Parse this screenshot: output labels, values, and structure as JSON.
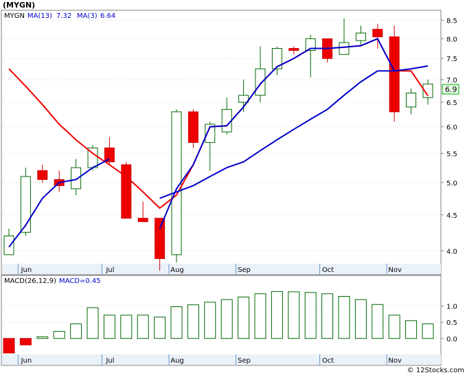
{
  "chart_data": [
    {
      "type": "candlestick",
      "title": "(MYGN)",
      "legend": [
        {
          "label": "MYGN",
          "color": "#000000"
        },
        {
          "label": "MA(13)",
          "value": "7.32",
          "color": "#0000cc"
        },
        {
          "label": "MA(3)",
          "value": "6.64",
          "color": "#cc0000"
        }
      ],
      "last_price_label": "6.9",
      "y_scale": "log",
      "ylim": [
        3.7,
        8.7
      ],
      "y_ticks": [
        "8.5",
        "8.0",
        "7.5",
        "7.0",
        "6.5",
        "6.0",
        "5.5",
        "5.0",
        "4.5",
        "4.0"
      ],
      "x_labels": [
        {
          "label": "Jun",
          "week": 1
        },
        {
          "label": "Jul",
          "week": 6
        },
        {
          "label": "Aug",
          "week": 10
        },
        {
          "label": "Sep",
          "week": 14
        },
        {
          "label": "Oct",
          "week": 19
        },
        {
          "label": "Nov",
          "week": 23
        }
      ],
      "candles": [
        {
          "o": 3.95,
          "h": 4.3,
          "l": 3.95,
          "c": 4.2
        },
        {
          "o": 4.25,
          "h": 5.25,
          "l": 4.2,
          "c": 5.1
        },
        {
          "o": 5.2,
          "h": 5.3,
          "l": 5.0,
          "c": 5.05
        },
        {
          "o": 5.05,
          "h": 5.2,
          "l": 4.85,
          "c": 4.95
        },
        {
          "o": 4.9,
          "h": 5.4,
          "l": 4.8,
          "c": 5.25
        },
        {
          "o": 5.25,
          "h": 5.65,
          "l": 5.2,
          "c": 5.6
        },
        {
          "o": 5.6,
          "h": 5.8,
          "l": 5.3,
          "c": 5.35
        },
        {
          "o": 5.3,
          "h": 5.35,
          "l": 4.45,
          "c": 4.45
        },
        {
          "o": 4.45,
          "h": 4.7,
          "l": 4.4,
          "c": 4.4
        },
        {
          "o": 4.45,
          "h": 4.45,
          "l": 3.75,
          "c": 3.9
        },
        {
          "o": 3.95,
          "h": 6.35,
          "l": 3.85,
          "c": 6.3
        },
        {
          "o": 6.3,
          "h": 6.35,
          "l": 5.6,
          "c": 5.7
        },
        {
          "o": 5.7,
          "h": 6.1,
          "l": 5.2,
          "c": 6.05
        },
        {
          "o": 5.9,
          "h": 6.6,
          "l": 5.85,
          "c": 6.35
        },
        {
          "o": 6.5,
          "h": 7.0,
          "l": 6.3,
          "c": 6.65
        },
        {
          "o": 6.65,
          "h": 7.8,
          "l": 6.5,
          "c": 7.25
        },
        {
          "o": 7.25,
          "h": 7.8,
          "l": 7.1,
          "c": 7.75
        },
        {
          "o": 7.75,
          "h": 7.8,
          "l": 7.6,
          "c": 7.7
        },
        {
          "o": 7.7,
          "h": 8.1,
          "l": 7.05,
          "c": 8.0
        },
        {
          "o": 8.0,
          "h": 8.0,
          "l": 7.4,
          "c": 7.5
        },
        {
          "o": 7.6,
          "h": 8.55,
          "l": 7.6,
          "c": 7.9
        },
        {
          "o": 7.95,
          "h": 8.35,
          "l": 7.8,
          "c": 8.15
        },
        {
          "o": 8.25,
          "h": 8.4,
          "l": 7.75,
          "c": 8.05
        },
        {
          "o": 8.05,
          "h": 8.35,
          "l": 6.1,
          "c": 6.3
        },
        {
          "o": 6.4,
          "h": 6.8,
          "l": 6.25,
          "c": 6.7
        },
        {
          "o": 6.6,
          "h": 7.0,
          "l": 6.45,
          "c": 6.9
        }
      ],
      "ma13": [
        [
          0,
          4.05
        ],
        [
          1,
          4.35
        ],
        [
          2,
          4.75
        ],
        [
          3,
          5.0
        ],
        [
          4,
          5.05
        ],
        [
          5,
          5.25
        ],
        [
          6,
          5.4
        ],
        [
          9,
          4.3
        ],
        [
          10,
          4.9
        ],
        [
          11,
          5.3
        ],
        [
          12,
          6.0
        ],
        [
          13,
          6.02
        ],
        [
          14,
          6.4
        ],
        [
          15,
          6.9
        ],
        [
          16,
          7.3
        ],
        [
          17,
          7.5
        ],
        [
          18,
          7.75
        ],
        [
          19,
          7.75
        ],
        [
          20,
          7.78
        ],
        [
          21,
          7.82
        ],
        [
          22,
          8.0
        ],
        [
          23,
          7.2
        ],
        [
          24,
          7.25
        ],
        [
          25,
          7.32
        ]
      ],
      "ma13_lower": [
        [
          9,
          4.75
        ],
        [
          10,
          4.85
        ],
        [
          11,
          4.95
        ],
        [
          12,
          5.1
        ],
        [
          13,
          5.25
        ],
        [
          14,
          5.35
        ],
        [
          15,
          5.55
        ],
        [
          16,
          5.75
        ],
        [
          17,
          5.95
        ],
        [
          18,
          6.15
        ],
        [
          19,
          6.35
        ],
        [
          20,
          6.65
        ],
        [
          21,
          6.95
        ],
        [
          22,
          7.2
        ],
        [
          23,
          7.2
        ]
      ],
      "ma3": [
        [
          0,
          7.25
        ],
        [
          1,
          6.85
        ],
        [
          2,
          6.45
        ],
        [
          3,
          6.05
        ],
        [
          4,
          5.75
        ],
        [
          5,
          5.5
        ],
        [
          6,
          5.3
        ],
        [
          7,
          5.1
        ],
        [
          8,
          4.85
        ],
        [
          9,
          4.6
        ],
        [
          10,
          4.8
        ],
        [
          11,
          5.3
        ],
        [
          12,
          6.0
        ],
        [
          13,
          6.02
        ],
        [
          14,
          6.4
        ],
        [
          15,
          6.9
        ],
        [
          16,
          7.3
        ],
        [
          17,
          7.5
        ],
        [
          18,
          7.75
        ],
        [
          19,
          7.75
        ],
        [
          20,
          7.78
        ],
        [
          21,
          7.82
        ],
        [
          22,
          8.0
        ],
        [
          23,
          7.2
        ],
        [
          24,
          7.2
        ],
        [
          25,
          6.64
        ]
      ]
    },
    {
      "type": "bar",
      "title": "MACD(26,12,9)",
      "legend": [
        {
          "label": "MACD(26,12,9)",
          "color": "#000000"
        },
        {
          "label": "MACD=0.45",
          "color": "#0000cc"
        }
      ],
      "ylim": [
        -0.45,
        1.65
      ],
      "y_ticks": [
        "1.0",
        "0.5",
        "0.0"
      ],
      "x_labels": [
        {
          "label": "Jun",
          "week": 1
        },
        {
          "label": "Jul",
          "week": 6
        },
        {
          "label": "Aug",
          "week": 10
        },
        {
          "label": "Sep",
          "week": 14
        },
        {
          "label": "Oct",
          "week": 19
        },
        {
          "label": "Nov",
          "week": 23
        }
      ],
      "values": [
        -0.45,
        -0.2,
        0.05,
        0.22,
        0.45,
        0.95,
        0.72,
        0.72,
        0.72,
        0.66,
        0.98,
        1.04,
        1.12,
        1.2,
        1.28,
        1.38,
        1.45,
        1.44,
        1.42,
        1.38,
        1.3,
        1.2,
        1.05,
        0.72,
        0.55,
        0.45
      ]
    }
  ],
  "watermark": "© 12Stocks.com"
}
